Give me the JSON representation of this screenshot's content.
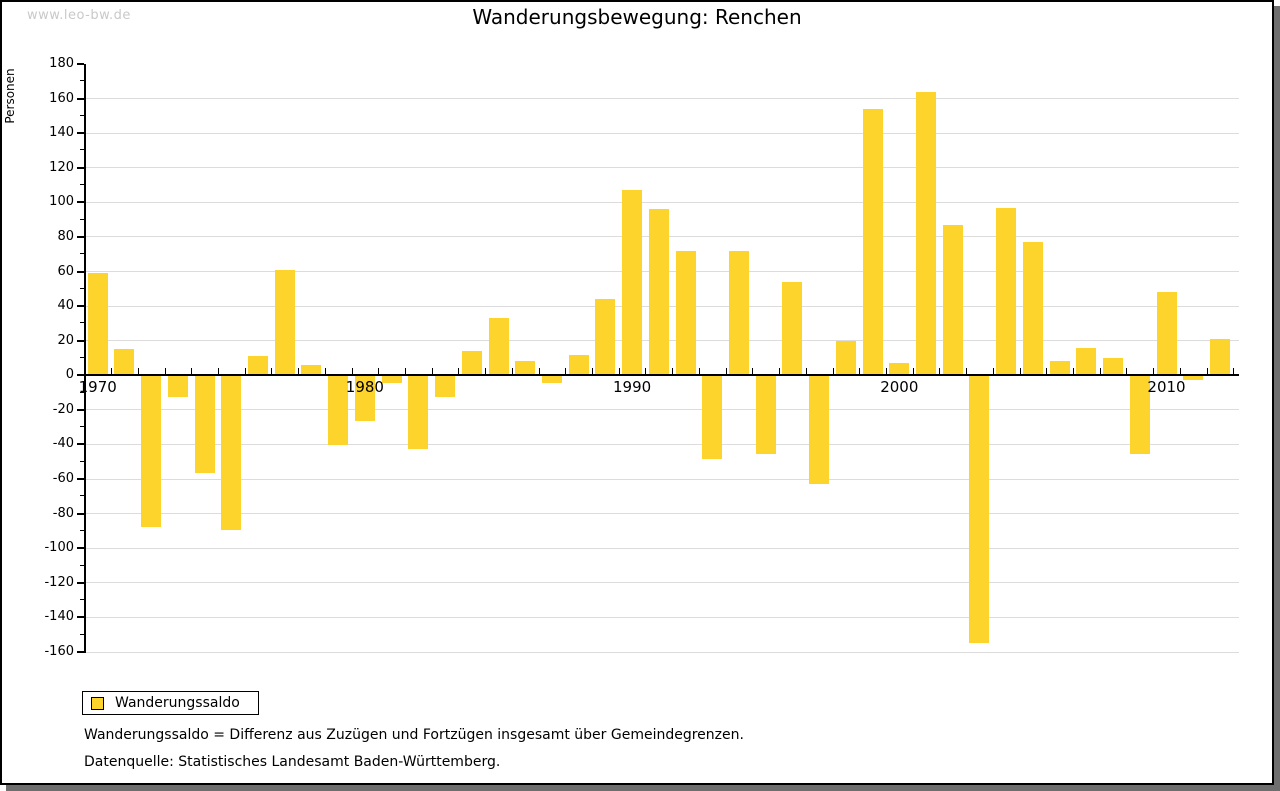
{
  "watermark": "www.leo-bw.de",
  "title": "Wanderungsbewegung: Renchen",
  "legend": {
    "label": "Wanderungssaldo"
  },
  "footnotes": {
    "definition": "Wanderungssaldo = Differenz aus Zuzügen und Fortzügen insgesamt über Gemeindegrenzen.",
    "source": "Datenquelle: Statistisches Landesamt Baden-Württemberg."
  },
  "colors": {
    "bar": "#FCD42C",
    "gridline": "#DCDCDC",
    "axis": "#000000",
    "watermark": "#C9C9C9"
  },
  "chart_data": {
    "type": "bar",
    "title": "Wanderungsbewegung: Renchen",
    "xlabel": "",
    "ylabel": "Personen",
    "ylim": [
      -160,
      180
    ],
    "ytick_step": 20,
    "ytick_minor_step": 10,
    "grid": "horizontal",
    "legend_position": "bottom-left",
    "xtick_labels": [
      1970,
      1980,
      1990,
      2000,
      2010
    ],
    "x": [
      1970,
      1971,
      1972,
      1973,
      1974,
      1975,
      1976,
      1977,
      1978,
      1979,
      1980,
      1981,
      1982,
      1983,
      1984,
      1985,
      1986,
      1987,
      1988,
      1989,
      1990,
      1991,
      1992,
      1993,
      1994,
      1995,
      1996,
      1997,
      1998,
      1999,
      2000,
      2001,
      2002,
      2003,
      2004,
      2005,
      2006,
      2007,
      2008,
      2009,
      2010,
      2011,
      2012
    ],
    "series": [
      {
        "name": "Wanderungssaldo",
        "values": [
          59,
          15,
          -87,
          -12,
          -56,
          -89,
          11,
          61,
          6,
          -40,
          -26,
          -4,
          -42,
          -12,
          14,
          33,
          8,
          -4,
          12,
          44,
          107,
          96,
          72,
          -48,
          72,
          -45,
          54,
          -62,
          20,
          154,
          7,
          164,
          87,
          -154,
          97,
          77,
          8,
          16,
          10,
          -45,
          48,
          -2,
          21
        ]
      }
    ]
  }
}
